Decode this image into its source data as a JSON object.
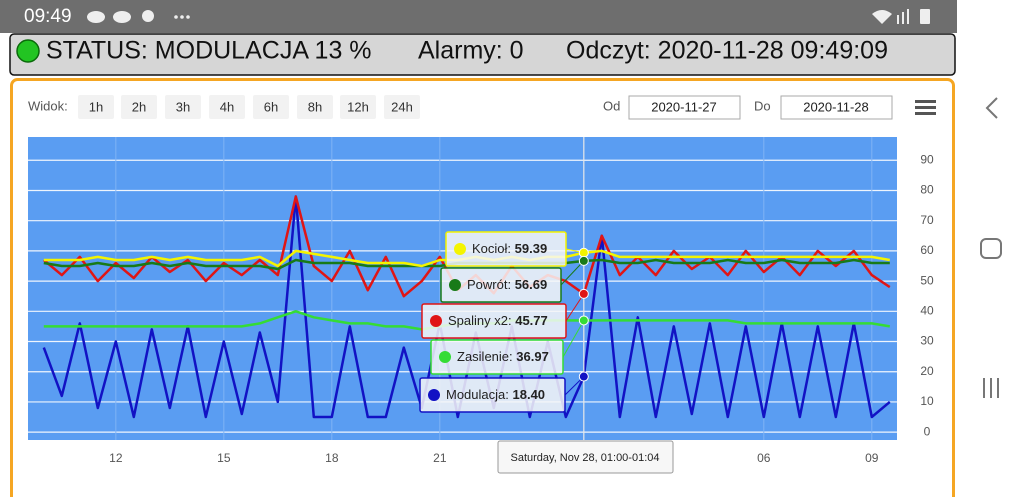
{
  "status_bar": {
    "time": "09:49"
  },
  "banner": {
    "status": "STATUS: MODULACJA 13 %",
    "alarms": "Alarmy: 0",
    "reading": "Odczyt: 2020-11-28 09:49:09"
  },
  "toolbar": {
    "view_label": "Widok:",
    "ranges": [
      "1h",
      "2h",
      "3h",
      "4h",
      "6h",
      "8h",
      "12h",
      "24h"
    ],
    "from_label": "Od",
    "from_date": "2020-11-27",
    "to_label": "Do",
    "to_date": "2020-11-28"
  },
  "chart_data": {
    "type": "line",
    "x": [
      10,
      10.5,
      11,
      11.5,
      12,
      12.5,
      13,
      13.5,
      14,
      14.5,
      15,
      15.5,
      16,
      16.5,
      17,
      17.5,
      18,
      18.5,
      19,
      19.5,
      20,
      20.5,
      21,
      21.5,
      22,
      22.5,
      23,
      23.5,
      24,
      24.5,
      25,
      25.5,
      26,
      26.5,
      27,
      27.5,
      28,
      28.5,
      29,
      29.5,
      30,
      30.5,
      31,
      31.5,
      32,
      32.5,
      33,
      33.5
    ],
    "xlim": [
      9.56,
      33.7
    ],
    "xticks": [
      12,
      15,
      18,
      21,
      {
        "value": 30,
        "label": "06"
      },
      {
        "value": 33,
        "label": "09"
      }
    ],
    "ylim": [
      -2.6,
      97.7
    ],
    "yticks": [
      0,
      10,
      20,
      30,
      40,
      50,
      60,
      70,
      80,
      90
    ],
    "grid": true,
    "series": [
      {
        "name": "Kocioł",
        "color": "#f4f400",
        "values": [
          57,
          57,
          57,
          58,
          57,
          57,
          58,
          57,
          58,
          57,
          57,
          57,
          58,
          55,
          60,
          59,
          58,
          57,
          56,
          56,
          56,
          55,
          57,
          57,
          58,
          57,
          58,
          57,
          58,
          58,
          59.39,
          60,
          58,
          58,
          58,
          58,
          58,
          58,
          58,
          58,
          58,
          58,
          58,
          58,
          58,
          58,
          58,
          57
        ]
      },
      {
        "name": "Powrót",
        "color": "#187a18",
        "values": [
          56,
          55,
          55,
          56,
          55,
          55,
          56,
          55,
          56,
          55,
          55,
          55,
          55,
          54,
          57,
          56,
          56,
          56,
          55,
          55,
          55,
          55,
          55,
          56,
          56,
          56,
          56,
          56,
          56,
          56,
          56.69,
          57,
          56,
          56,
          57,
          56,
          56,
          56,
          57,
          56,
          56,
          57,
          56,
          56,
          56,
          57,
          56,
          56
        ]
      },
      {
        "name": "Spaliny x2",
        "color": "#e01515",
        "values": [
          57,
          52,
          58,
          50,
          56,
          51,
          58,
          53,
          57,
          50,
          56,
          52,
          57,
          52,
          78,
          55,
          50,
          60,
          47,
          58,
          45,
          50,
          58,
          47,
          52,
          46,
          55,
          48,
          52,
          50,
          45.77,
          65,
          52,
          58,
          52,
          60,
          54,
          58,
          52,
          60,
          53,
          58,
          52,
          60,
          55,
          60,
          52,
          48
        ]
      },
      {
        "name": "Zasilenie",
        "color": "#35dc35",
        "values": [
          35,
          35,
          35,
          35,
          35,
          35,
          35,
          35,
          35,
          35,
          35,
          35,
          36,
          38,
          40,
          38,
          37,
          36,
          36,
          35,
          35,
          34,
          35,
          36,
          36,
          36,
          37,
          37,
          37,
          37,
          36.97,
          37,
          37,
          37,
          37,
          37,
          37,
          37,
          37,
          36,
          36,
          36,
          36,
          36,
          36,
          36,
          36,
          35
        ]
      },
      {
        "name": "Modulacja",
        "color": "#1212c4",
        "values": [
          28,
          12,
          36,
          8,
          30,
          5,
          34,
          8,
          35,
          5,
          30,
          6,
          33,
          10,
          78,
          5,
          5,
          35,
          5,
          5,
          28,
          8,
          36,
          5,
          33,
          8,
          35,
          5,
          30,
          5,
          18.4,
          65,
          5,
          38,
          5,
          35,
          6,
          36,
          5,
          35,
          5,
          36,
          5,
          35,
          5,
          36,
          5,
          10
        ]
      }
    ],
    "tooltip": {
      "header": "Saturday, Nov 28, 01:00-01:04",
      "value_labels": [
        "59.39",
        "56.69",
        "45.77",
        "36.97",
        "18.40"
      ]
    }
  }
}
